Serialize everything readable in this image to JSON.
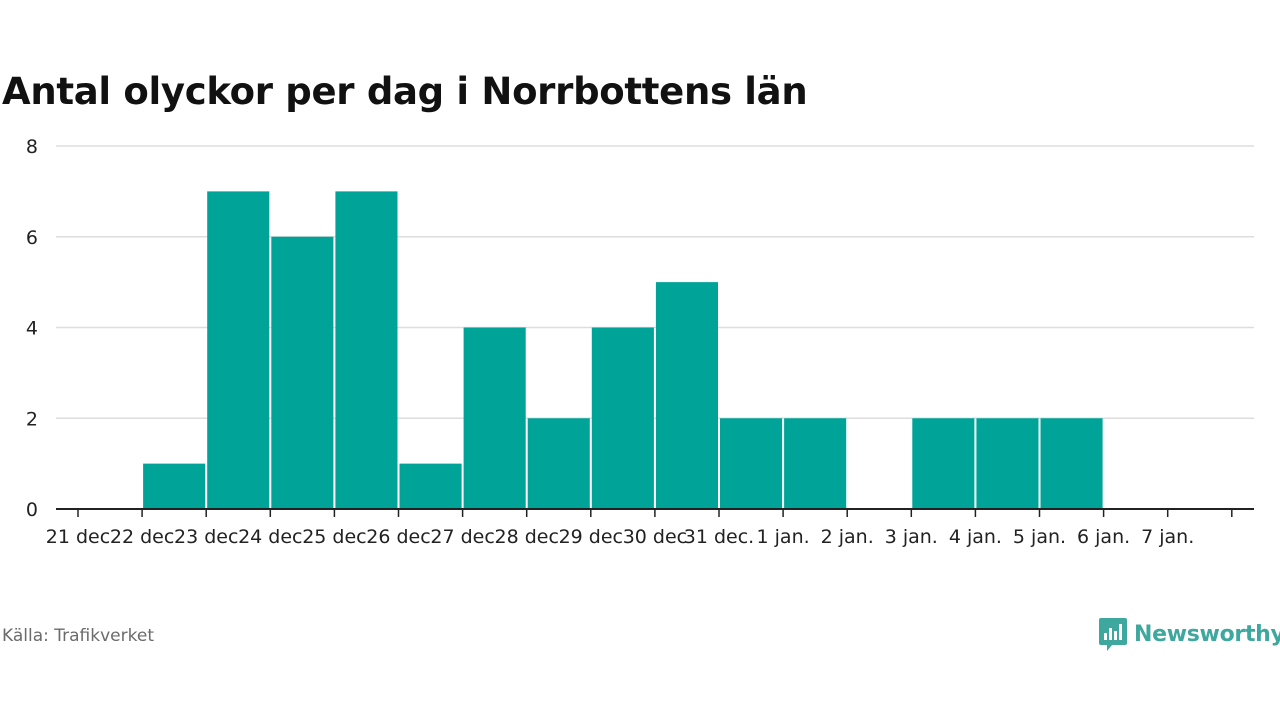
{
  "chart_data": {
    "type": "bar",
    "title": "Antal olyckor per dag i Norrbottens län",
    "categories": [
      "21 dec",
      "22 dec",
      "23 dec",
      "24 dec",
      "25 dec",
      "26 dec",
      "27 dec",
      "28 dec",
      "29 dec",
      "30 dec",
      "31 dec.",
      "1 jan.",
      "2 jan.",
      "3 jan.",
      "4 jan.",
      "5 jan.",
      "6 jan.",
      "7 jan."
    ],
    "values": [
      0,
      1,
      7,
      6,
      7,
      1,
      4,
      2,
      4,
      5,
      2,
      2,
      0,
      2,
      2,
      2,
      0,
      0
    ],
    "ylim": [
      0,
      8
    ],
    "yticks": [
      0,
      2,
      4,
      6,
      8
    ],
    "grid": true,
    "bar_color": "#00a398"
  },
  "footer": {
    "source": "Källa: Trafikverket",
    "brand": "Newsworthy"
  },
  "colors": {
    "brand": "#3ea79e",
    "grid": "#dddddd",
    "axis": "#222222"
  }
}
